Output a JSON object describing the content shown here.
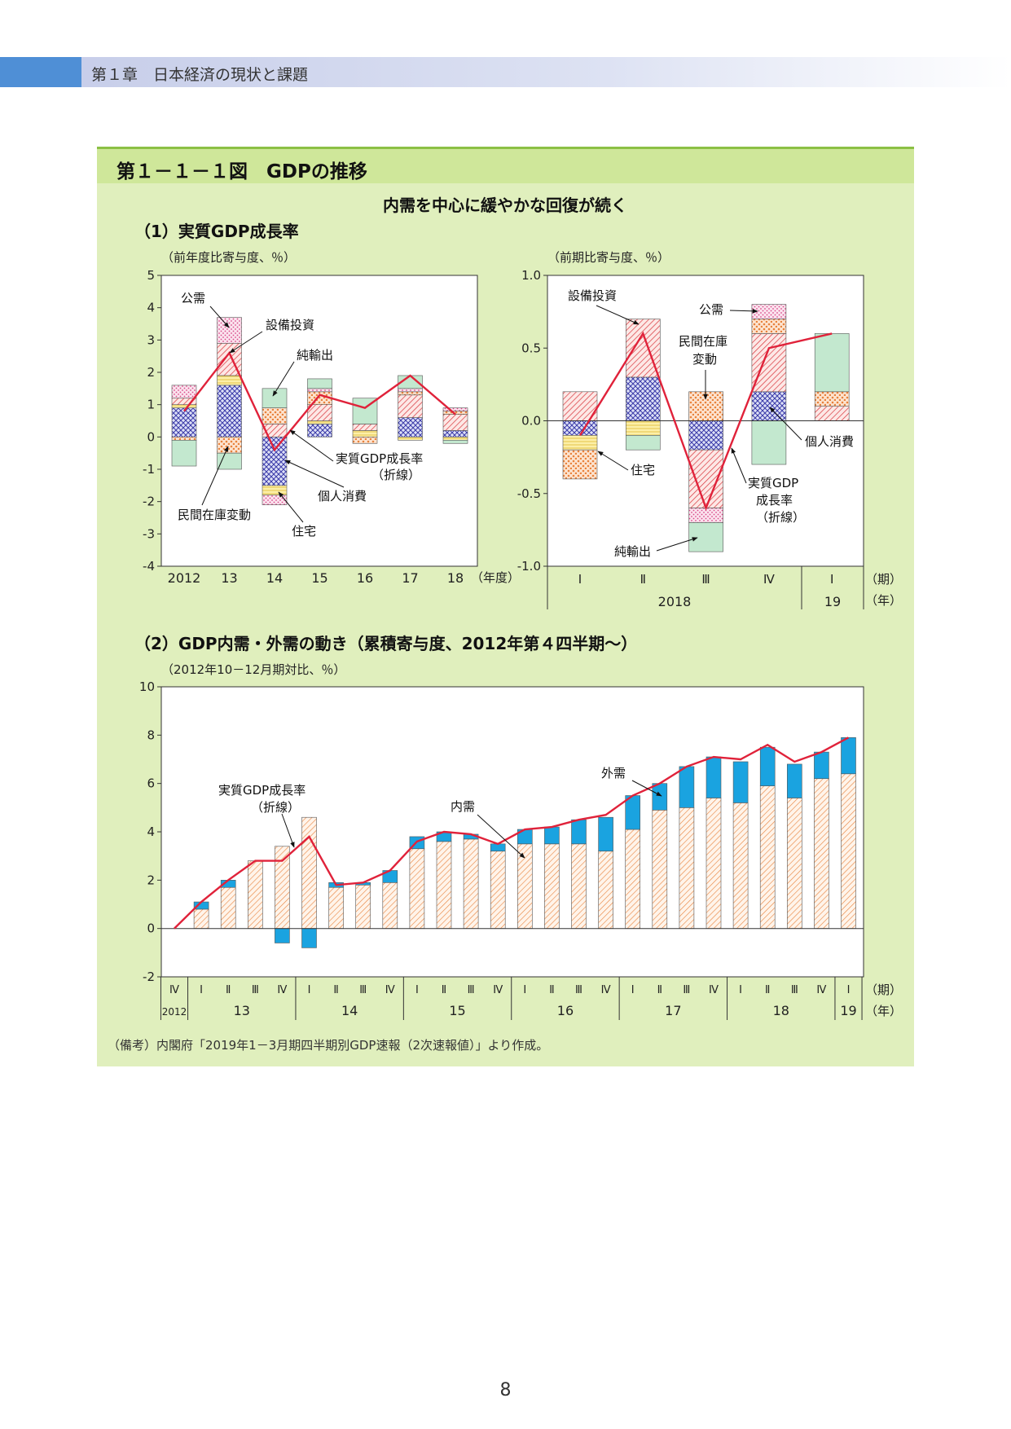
{
  "header": {
    "chapter": "第１章　日本経済の現状と課題"
  },
  "figure": {
    "title": "第１－１－１図　GDPの推移",
    "subtitle": "内需を中心に緩やかな回復が続く",
    "note": "（備考）内閣府「2019年1－3月期四半期別GDP速報（2次速報値）」より作成。"
  },
  "page_number": "8",
  "colors": {
    "public": "#d94b8a",
    "capex": "#d8343a",
    "net_exports": "#a6dcbc",
    "inventory": "#e8823c",
    "private_consumption": "#3a3aa8",
    "housing": "#f0d45a",
    "gdp_line": "#e0223a",
    "domestic": "#e8823c",
    "external": "#1aa3e0"
  },
  "chart_data": [
    {
      "type": "bar",
      "stacked": true,
      "title": "（1）実質GDP成長率",
      "ylabel": "（前年度比寄与度、％）",
      "xunit": "（年度）",
      "ylim": [
        -4,
        5
      ],
      "yticks": [
        "5",
        "4",
        "3",
        "2",
        "1",
        "0",
        "-1",
        "-2",
        "-3",
        "-4"
      ],
      "categories": [
        "2012",
        "13",
        "14",
        "15",
        "16",
        "17",
        "18"
      ],
      "series": [
        {
          "name": "個人消費",
          "key": "private_consumption",
          "values": [
            0.9,
            1.6,
            -1.5,
            0.4,
            0.0,
            0.6,
            0.2
          ]
        },
        {
          "name": "住宅",
          "key": "housing",
          "values": [
            0.1,
            0.3,
            -0.3,
            0.1,
            0.2,
            -0.1,
            -0.1
          ]
        },
        {
          "name": "設備投資",
          "key": "capex",
          "values": [
            0.2,
            1.0,
            0.4,
            0.5,
            0.2,
            0.7,
            0.5
          ]
        },
        {
          "name": "民間在庫変動",
          "key": "inventory",
          "values": [
            -0.1,
            -0.5,
            0.5,
            0.4,
            -0.2,
            0.1,
            0.1
          ]
        },
        {
          "name": "公需",
          "key": "public",
          "values": [
            0.4,
            0.8,
            -0.3,
            0.1,
            0.0,
            0.1,
            0.1
          ]
        },
        {
          "name": "純輸出",
          "key": "net_exports",
          "values": [
            -0.8,
            -0.5,
            0.6,
            0.3,
            0.8,
            0.4,
            -0.1
          ]
        }
      ],
      "line": {
        "name": "実質GDP成長率（折線）",
        "values": [
          0.8,
          2.6,
          -0.4,
          1.3,
          0.9,
          1.9,
          0.7
        ]
      },
      "labels": [
        "公需",
        "設備投資",
        "純輸出",
        "実質GDP成長率",
        "（折線）",
        "個人消費",
        "民間在庫変動",
        "住宅"
      ]
    },
    {
      "type": "bar",
      "stacked": true,
      "ylabel": "（前期比寄与度、％）",
      "ylim": [
        -1.0,
        1.0
      ],
      "yticks": [
        "1.0",
        "0.5",
        "0.0",
        "-0.5",
        "-1.0"
      ],
      "categories": [
        "Ⅰ",
        "Ⅱ",
        "Ⅲ",
        "Ⅳ",
        "Ⅰ"
      ],
      "period_unit": "（期）",
      "year_unit": "（年）",
      "years": [
        "2018",
        "19"
      ],
      "series": [
        {
          "name": "個人消費",
          "key": "private_consumption",
          "values": [
            -0.1,
            0.3,
            -0.2,
            0.2,
            0.0
          ]
        },
        {
          "name": "住宅",
          "key": "housing",
          "values": [
            -0.1,
            -0.1,
            0.0,
            0.0,
            0.0
          ]
        },
        {
          "name": "設備投資",
          "key": "capex",
          "values": [
            0.2,
            0.4,
            -0.4,
            0.4,
            0.1
          ]
        },
        {
          "name": "民間在庫変動",
          "key": "inventory",
          "values": [
            -0.2,
            0.0,
            0.2,
            0.1,
            0.1
          ]
        },
        {
          "name": "公需",
          "key": "public",
          "values": [
            0.0,
            0.0,
            -0.1,
            0.1,
            0.0
          ]
        },
        {
          "name": "純輸出",
          "key": "net_exports",
          "values": [
            0.0,
            -0.1,
            -0.2,
            -0.3,
            0.4
          ]
        }
      ],
      "line": {
        "name": "実質GDP成長率（折線）",
        "values": [
          -0.1,
          0.6,
          -0.6,
          0.5,
          0.6
        ]
      },
      "labels": [
        "設備投資",
        "公需",
        "民間在庫",
        "変動",
        "個人消費",
        "住宅",
        "実質GDP",
        "成長率",
        "（折線）",
        "純輸出"
      ]
    },
    {
      "type": "bar",
      "stacked": true,
      "title": "（2）GDP内需・外需の動き（累積寄与度、2012年第４四半期～）",
      "ylabel": "（2012年10－12月期対比、％）",
      "ylim": [
        -2,
        10
      ],
      "yticks": [
        "10",
        "8",
        "6",
        "4",
        "2",
        "0",
        "-2"
      ],
      "categories": [
        "Ⅳ",
        "Ⅰ",
        "Ⅱ",
        "Ⅲ",
        "Ⅳ",
        "Ⅰ",
        "Ⅱ",
        "Ⅲ",
        "Ⅳ",
        "Ⅰ",
        "Ⅱ",
        "Ⅲ",
        "Ⅳ",
        "Ⅰ",
        "Ⅱ",
        "Ⅲ",
        "Ⅳ",
        "Ⅰ",
        "Ⅱ",
        "Ⅲ",
        "Ⅳ",
        "Ⅰ",
        "Ⅱ",
        "Ⅲ",
        "Ⅳ",
        "Ⅰ"
      ],
      "period_unit": "（期）",
      "year_unit": "（年）",
      "years": [
        "2012",
        "13",
        "14",
        "15",
        "16",
        "17",
        "18",
        "19"
      ],
      "series": [
        {
          "name": "内需",
          "key": "domestic",
          "values": [
            0,
            0.8,
            1.7,
            2.8,
            3.4,
            4.6,
            1.7,
            1.8,
            1.9,
            3.3,
            3.6,
            3.7,
            3.2,
            3.5,
            3.5,
            3.5,
            3.2,
            4.1,
            4.9,
            5.0,
            5.4,
            5.2,
            5.9,
            5.4,
            6.2,
            6.4
          ]
        },
        {
          "name": "外需",
          "key": "external",
          "values": [
            0,
            0.3,
            0.3,
            0.0,
            -0.6,
            -0.8,
            0.2,
            0.1,
            0.5,
            0.5,
            0.4,
            0.2,
            0.3,
            0.6,
            0.7,
            1.0,
            1.4,
            1.4,
            1.1,
            1.7,
            1.7,
            1.7,
            1.6,
            1.4,
            1.1,
            1.5
          ]
        }
      ],
      "line": {
        "name": "実質GDP成長率（折線）",
        "values": [
          0,
          1.1,
          2.0,
          2.8,
          2.8,
          3.8,
          1.8,
          1.9,
          2.4,
          3.6,
          4.0,
          3.9,
          3.5,
          4.1,
          4.2,
          4.5,
          4.7,
          5.5,
          6.0,
          6.7,
          7.1,
          7.0,
          7.6,
          6.9,
          7.3,
          7.9
        ]
      },
      "labels": [
        "実質GDP成長率",
        "（折線）",
        "内需",
        "外需"
      ]
    }
  ]
}
